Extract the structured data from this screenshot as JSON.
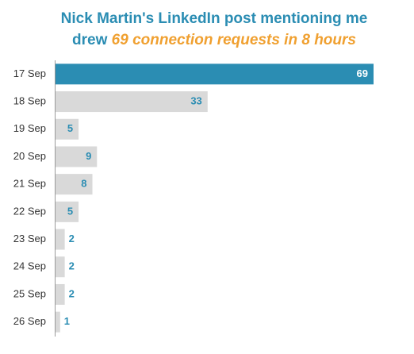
{
  "chart_data": {
    "type": "hbar",
    "title": {
      "line1": "Nick Martin's LinkedIn post mentioning me",
      "line2": "drew",
      "highlight": "69 connection requests in 8 hours"
    },
    "title_color": "#2b8db3",
    "highlight_color": "#f0a030",
    "categories": [
      "17 Sep",
      "18 Sep",
      "19 Sep",
      "20 Sep",
      "21 Sep",
      "22 Sep",
      "23 Sep",
      "24 Sep",
      "25 Sep",
      "26 Sep"
    ],
    "values": [
      69,
      33,
      5,
      9,
      8,
      5,
      2,
      2,
      2,
      1
    ],
    "colors": [
      "#2b8db3",
      "#d9d9d9",
      "#d9d9d9",
      "#d9d9d9",
      "#d9d9d9",
      "#d9d9d9",
      "#d9d9d9",
      "#d9d9d9",
      "#d9d9d9",
      "#d9d9d9"
    ],
    "label_colors": [
      "#ffffff",
      "#2b8db3",
      "#2b8db3",
      "#2b8db3",
      "#2b8db3",
      "#2b8db3",
      "#2b8db3",
      "#2b8db3",
      "#2b8db3",
      "#2b8db3"
    ]
  }
}
